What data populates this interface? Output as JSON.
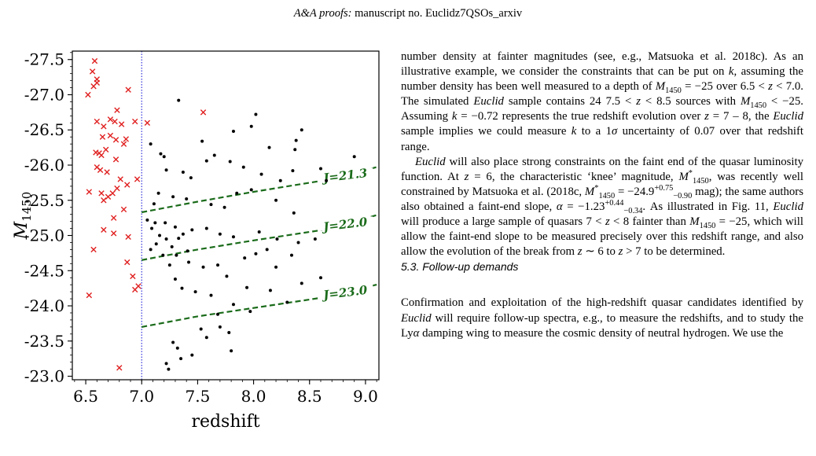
{
  "header": {
    "journal": "A&A proofs:",
    "manuscript": "manuscript no. Euclidz7QSOs_arxiv"
  },
  "chart_data": {
    "type": "scatter",
    "xlabel": "redshift",
    "ylabel": "M1450",
    "xlim": [
      6.38,
      9.12
    ],
    "ylim": [
      -22.95,
      -27.62
    ],
    "x_ticks": [
      6.5,
      7.0,
      7.5,
      8.0,
      8.5,
      9.0
    ],
    "x_tick_labels": [
      "6.5",
      "7.0",
      "7.5",
      "8.0",
      "8.5",
      "9.0"
    ],
    "y_ticks": [
      -27.5,
      -27.0,
      -26.5,
      -26.0,
      -25.5,
      -25.0,
      -24.5,
      -24.0,
      -23.5,
      -23.0
    ],
    "y_tick_labels": [
      "-27.5",
      "-27.0",
      "-26.5",
      "-26.0",
      "-25.5",
      "-25.0",
      "-24.5",
      "-24.0",
      "-23.5",
      "-23.0"
    ],
    "vline_x": 7.0,
    "colors": {
      "crosses": "#e02020",
      "dots": "#000000",
      "contours": "#1a6b1a",
      "vline": "#3333dd"
    },
    "series": [
      {
        "marker": "x",
        "points": [
          [
            6.58,
            -27.48
          ],
          [
            6.56,
            -27.33
          ],
          [
            6.6,
            -27.22
          ],
          [
            6.6,
            -27.17
          ],
          [
            6.57,
            -27.12
          ],
          [
            6.52,
            -27.0
          ],
          [
            6.88,
            -27.07
          ],
          [
            6.78,
            -26.78
          ],
          [
            6.6,
            -26.62
          ],
          [
            6.72,
            -26.65
          ],
          [
            6.76,
            -26.62
          ],
          [
            6.82,
            -26.58
          ],
          [
            6.94,
            -26.62
          ],
          [
            6.66,
            -26.55
          ],
          [
            6.72,
            -26.42
          ],
          [
            6.65,
            -26.4
          ],
          [
            6.77,
            -26.36
          ],
          [
            6.86,
            -26.37
          ],
          [
            6.59,
            -26.18
          ],
          [
            6.62,
            -26.17
          ],
          [
            6.64,
            -26.14
          ],
          [
            6.68,
            -26.22
          ],
          [
            6.84,
            -26.3
          ],
          [
            6.77,
            -26.08
          ],
          [
            6.6,
            -25.97
          ],
          [
            6.63,
            -25.93
          ],
          [
            6.69,
            -25.9
          ],
          [
            6.81,
            -25.8
          ],
          [
            6.87,
            -25.72
          ],
          [
            6.78,
            -25.67
          ],
          [
            6.74,
            -25.6
          ],
          [
            6.64,
            -25.6
          ],
          [
            6.66,
            -25.5
          ],
          [
            6.53,
            -25.62
          ],
          [
            6.7,
            -25.55
          ],
          [
            6.75,
            -25.25
          ],
          [
            6.84,
            -25.37
          ],
          [
            6.66,
            -25.08
          ],
          [
            6.75,
            -25.03
          ],
          [
            6.88,
            -24.98
          ],
          [
            6.57,
            -24.8
          ],
          [
            6.92,
            -24.42
          ],
          [
            6.53,
            -24.15
          ],
          [
            6.87,
            -24.62
          ],
          [
            6.94,
            -24.23
          ],
          [
            6.97,
            -24.28
          ],
          [
            6.8,
            -23.12
          ],
          [
            7.05,
            -26.6
          ],
          [
            7.55,
            -26.75
          ],
          [
            6.96,
            -25.8
          ]
        ]
      },
      {
        "marker": "dot",
        "points": [
          [
            7.33,
            -26.92
          ],
          [
            7.82,
            -26.48
          ],
          [
            8.02,
            -26.72
          ],
          [
            7.98,
            -26.55
          ],
          [
            8.38,
            -26.35
          ],
          [
            8.37,
            -26.22
          ],
          [
            8.43,
            -26.5
          ],
          [
            7.54,
            -26.34
          ],
          [
            7.58,
            -26.06
          ],
          [
            7.65,
            -26.14
          ],
          [
            7.79,
            -26.05
          ],
          [
            7.91,
            -25.97
          ],
          [
            8.14,
            -26.25
          ],
          [
            7.08,
            -26.3
          ],
          [
            7.17,
            -26.16
          ],
          [
            7.2,
            -26.12
          ],
          [
            7.22,
            -25.93
          ],
          [
            7.37,
            -25.9
          ],
          [
            7.44,
            -25.82
          ],
          [
            8.07,
            -25.87
          ],
          [
            8.24,
            -25.78
          ],
          [
            8.35,
            -25.92
          ],
          [
            8.6,
            -25.95
          ],
          [
            8.9,
            -26.12
          ],
          [
            8.65,
            -25.78
          ],
          [
            7.15,
            -25.6
          ],
          [
            7.28,
            -25.55
          ],
          [
            7.4,
            -25.52
          ],
          [
            7.62,
            -25.44
          ],
          [
            7.85,
            -25.6
          ],
          [
            7.98,
            -25.65
          ],
          [
            7.74,
            -25.4
          ],
          [
            8.2,
            -25.5
          ],
          [
            8.36,
            -25.32
          ],
          [
            7.05,
            -25.22
          ],
          [
            7.12,
            -25.18
          ],
          [
            7.21,
            -25.18
          ],
          [
            7.3,
            -25.12
          ],
          [
            7.45,
            -25.08
          ],
          [
            7.58,
            -25.1
          ],
          [
            7.7,
            -25.02
          ],
          [
            7.82,
            -24.98
          ],
          [
            8.05,
            -25.05
          ],
          [
            8.21,
            -24.95
          ],
          [
            8.12,
            -24.8
          ],
          [
            8.02,
            -24.74
          ],
          [
            7.92,
            -24.68
          ],
          [
            8.34,
            -24.72
          ],
          [
            8.4,
            -24.9
          ],
          [
            8.55,
            -24.95
          ],
          [
            8.2,
            -24.55
          ],
          [
            7.42,
            -24.62
          ],
          [
            7.31,
            -24.72
          ],
          [
            7.25,
            -24.58
          ],
          [
            7.55,
            -24.55
          ],
          [
            7.68,
            -24.58
          ],
          [
            7.76,
            -24.42
          ],
          [
            8.6,
            -24.4
          ],
          [
            8.43,
            -24.32
          ],
          [
            7.94,
            -24.26
          ],
          [
            8.15,
            -24.22
          ],
          [
            8.3,
            -24.05
          ],
          [
            7.62,
            -24.15
          ],
          [
            7.48,
            -24.2
          ],
          [
            7.36,
            -24.25
          ],
          [
            7.3,
            -24.38
          ],
          [
            7.82,
            -24.02
          ],
          [
            7.97,
            -23.92
          ],
          [
            7.68,
            -23.88
          ],
          [
            7.7,
            -23.7
          ],
          [
            7.58,
            -23.55
          ],
          [
            7.53,
            -23.67
          ],
          [
            7.78,
            -23.62
          ],
          [
            7.8,
            -23.36
          ],
          [
            7.45,
            -23.3
          ],
          [
            7.35,
            -23.25
          ],
          [
            7.32,
            -23.4
          ],
          [
            7.28,
            -23.48
          ],
          [
            7.22,
            -23.18
          ],
          [
            7.24,
            -23.1
          ],
          [
            7.08,
            -24.8
          ],
          [
            7.09,
            -25.1
          ],
          [
            7.11,
            -25.45
          ],
          [
            7.13,
            -24.88
          ],
          [
            7.16,
            -25.0
          ],
          [
            7.19,
            -24.72
          ],
          [
            7.22,
            -24.95
          ],
          [
            7.27,
            -24.84
          ],
          [
            7.33,
            -24.96
          ],
          [
            7.37,
            -25.02
          ],
          [
            7.41,
            -24.78
          ]
        ]
      }
    ],
    "contours": [
      {
        "label": "J=21.3",
        "x": [
          7.0,
          7.5,
          8.0,
          8.5,
          8.7,
          9.12
        ],
        "y": [
          -25.33,
          -25.48,
          -25.62,
          -25.75,
          -25.8,
          -25.98
        ]
      },
      {
        "label": "J=22.0",
        "x": [
          7.0,
          7.5,
          8.0,
          8.5,
          8.7,
          9.12
        ],
        "y": [
          -24.65,
          -24.8,
          -24.93,
          -25.05,
          -25.1,
          -25.3
        ]
      },
      {
        "label": "J=23.0",
        "x": [
          7.0,
          7.5,
          8.0,
          8.5,
          8.7,
          9.12
        ],
        "y": [
          -23.7,
          -23.85,
          -23.97,
          -24.09,
          -24.14,
          -24.31
        ]
      }
    ],
    "contour_label_x": [
      8.82,
      8.82,
      8.82
    ]
  }
}
